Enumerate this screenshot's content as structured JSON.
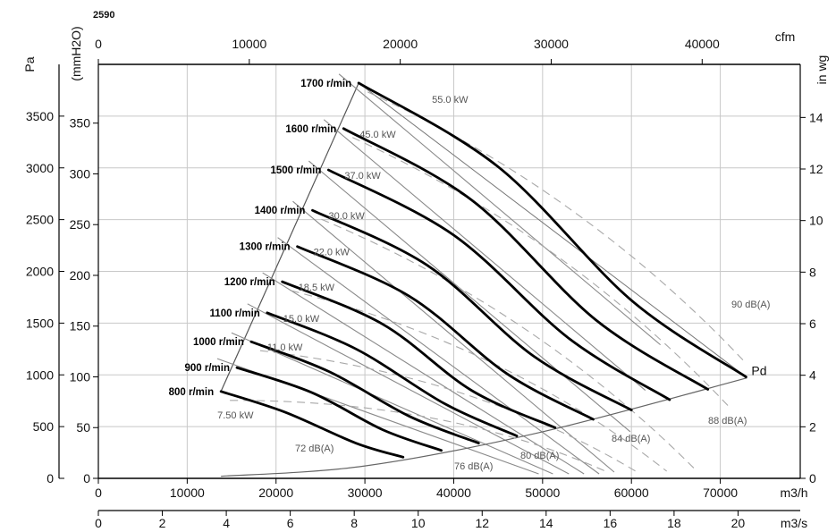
{
  "page_label": "2590",
  "chart_data": {
    "type": "line",
    "title": "",
    "x_axes": {
      "m3h": {
        "label": "m3/h",
        "ticks": [
          "0",
          "10000",
          "20000",
          "30000",
          "40000",
          "50000",
          "60000",
          "70000"
        ],
        "range": [
          0,
          79000
        ]
      },
      "m3s": {
        "label": "m3/s",
        "ticks": [
          "0",
          "2",
          "4",
          "6",
          "8",
          "10",
          "12",
          "14",
          "16",
          "18",
          "20"
        ]
      },
      "cfm": {
        "label": "cfm",
        "ticks": [
          "0",
          "10000",
          "20000",
          "30000",
          "40000"
        ]
      }
    },
    "y_axes": {
      "pa": {
        "label": "Pa",
        "ticks": [
          "0",
          "500",
          "1000",
          "1500",
          "2000",
          "2500",
          "3000",
          "3500"
        ],
        "range": [
          0,
          4000
        ]
      },
      "mmh2o": {
        "label": "(mmH2O)",
        "ticks": [
          "0",
          "50",
          "100",
          "150",
          "200",
          "250",
          "300",
          "350"
        ]
      },
      "inwg": {
        "label": "in wg",
        "ticks": [
          "0",
          "2",
          "4",
          "6",
          "8",
          "10",
          "12",
          "14"
        ]
      }
    },
    "grid": true,
    "series": [
      {
        "name": "800 r/min",
        "x": [
          13800,
          21000,
          29000,
          34300
        ],
        "y": [
          840,
          640,
          340,
          205
        ]
      },
      {
        "name": "900 r/min",
        "x": [
          15600,
          24000,
          32000,
          38600
        ],
        "y": [
          1070,
          830,
          470,
          270
        ]
      },
      {
        "name": "1000 r/min",
        "x": [
          17200,
          26000,
          35000,
          42800
        ],
        "y": [
          1320,
          1030,
          600,
          340
        ]
      },
      {
        "name": "1100 r/min",
        "x": [
          19000,
          29000,
          39000,
          47100
        ],
        "y": [
          1600,
          1250,
          720,
          410
        ]
      },
      {
        "name": "1200 r/min",
        "x": [
          20700,
          32000,
          42000,
          51400
        ],
        "y": [
          1900,
          1490,
          850,
          490
        ]
      },
      {
        "name": "1300 r/min",
        "x": [
          22400,
          35000,
          46000,
          55700
        ],
        "y": [
          2240,
          1760,
          1010,
          570
        ]
      },
      {
        "name": "1400 r/min",
        "x": [
          24100,
          37000,
          49000,
          60000
        ],
        "y": [
          2590,
          2060,
          1180,
          660
        ]
      },
      {
        "name": "1500 r/min",
        "x": [
          25900,
          40000,
          53000,
          64300
        ],
        "y": [
          2980,
          2350,
          1350,
          760
        ]
      },
      {
        "name": "1600 r/min",
        "x": [
          27600,
          42000,
          56000,
          68600
        ],
        "y": [
          3380,
          2690,
          1530,
          860
        ]
      },
      {
        "name": "1700 r/min",
        "x": [
          29300,
          45000,
          60000,
          72900
        ],
        "y": [
          3820,
          3010,
          1720,
          980
        ]
      }
    ],
    "pd_curve": {
      "name": "Pd",
      "x": [
        13800,
        30000,
        50000,
        73000
      ],
      "y": [
        20,
        120,
        450,
        970
      ]
    },
    "power_labels": [
      "7.50 kW",
      "11.0 kW",
      "15.0 kW",
      "18.5 kW",
      "22.0 kW",
      "30.0 kW",
      "37.0 kW",
      "45.0 kW",
      "55.0 kW"
    ],
    "sound_labels": [
      "72 dB(A)",
      "76 dB(A)",
      "80 dB(A)",
      "84 dB(A)",
      "88 dB(A)",
      "90 dB(A)"
    ],
    "colors": {
      "rpm_curve": "#000000",
      "power_line": "#8a8a8a",
      "sound_line": "#a8a8a8",
      "grid": "#c8c8c8",
      "axis": "#000000"
    }
  }
}
